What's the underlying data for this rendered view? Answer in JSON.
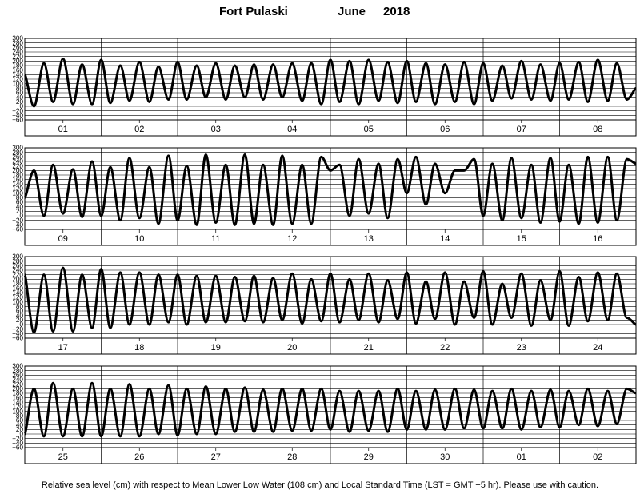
{
  "header": {
    "station": "Fort Pulaski",
    "month": "June",
    "year": "2018"
  },
  "footnote": "Relative sea level (cm) with respect to Mean Lower Low Water (108 cm) and Local Standard Time (LST = GMT −5 hr). Please use with caution.",
  "chart_data": {
    "type": "line",
    "ylim": [
      -60,
      300
    ],
    "yticks": [
      -60,
      -40,
      -20,
      0,
      20,
      40,
      60,
      80,
      100,
      120,
      140,
      160,
      180,
      200,
      220,
      240,
      260,
      280,
      300
    ],
    "grid": true,
    "panels": [
      {
        "days": [
          "01",
          "02",
          "03",
          "04",
          "05",
          "06",
          "07",
          "08"
        ],
        "series": [
          {
            "x": [
              0,
              0.12,
              0.25,
              0.37,
              0.5,
              0.63,
              0.75,
              0.88,
              1,
              1.12,
              1.25,
              1.37,
              1.5,
              1.63,
              1.75,
              1.88,
              2,
              2.12,
              2.25,
              2.37,
              2.5,
              2.63,
              2.75,
              2.88,
              3,
              3.12,
              3.25,
              3.37,
              3.5,
              3.63,
              3.75,
              3.88,
              4,
              4.12,
              4.25,
              4.37,
              4.5,
              4.63,
              4.75,
              4.88,
              5,
              5.12,
              5.25,
              5.37,
              5.5,
              5.63,
              5.75,
              5.88,
              6,
              6.12,
              6.25,
              6.37,
              6.5,
              6.63,
              6.75,
              6.88,
              7,
              7.12,
              7.25,
              7.37,
              7.5,
              7.63,
              7.75,
              7.88,
              8
            ],
            "y": [
              140,
              0,
              190,
              20,
              210,
              10,
              185,
              10,
              205,
              15,
              180,
              25,
              195,
              20,
              175,
              30,
              195,
              30,
              180,
              40,
              190,
              30,
              180,
              40,
              185,
              30,
              185,
              40,
              190,
              25,
              190,
              10,
              205,
              20,
              200,
              10,
              205,
              25,
              195,
              15,
              200,
              20,
              190,
              10,
              185,
              20,
              195,
              10,
              190,
              25,
              180,
              35,
              200,
              30,
              185,
              25,
              190,
              30,
              195,
              20,
              205,
              25,
              190,
              30,
              80
            ]
          }
        ]
      },
      {
        "days": [
          "09",
          "10",
          "11",
          "12",
          "13",
          "14",
          "15",
          "16"
        ],
        "series": [
          {
            "x": [
              0,
              0.12,
              0.25,
              0.37,
              0.5,
              0.63,
              0.75,
              0.88,
              1,
              1.12,
              1.25,
              1.37,
              1.5,
              1.63,
              1.75,
              1.88,
              2,
              2.12,
              2.25,
              2.37,
              2.5,
              2.63,
              2.75,
              2.88,
              3,
              3.12,
              3.25,
              3.37,
              3.5,
              3.63,
              3.75,
              3.88,
              4,
              4.12,
              4.25,
              4.37,
              4.5,
              4.63,
              4.75,
              4.88,
              5,
              5.12,
              5.25,
              5.37,
              5.5,
              5.63,
              5.75,
              5.88,
              6,
              6.12,
              6.25,
              6.37,
              6.5,
              6.63,
              6.75,
              6.88,
              7,
              7.12,
              7.25,
              7.37,
              7.5,
              7.63,
              7.75,
              7.88,
              8
            ],
            "y": [
              80,
              200,
              0,
              225,
              10,
              205,
              -5,
              240,
              0,
              215,
              -20,
              255,
              -10,
              215,
              -35,
              265,
              -20,
              220,
              -40,
              270,
              -30,
              225,
              -40,
              270,
              -35,
              225,
              -40,
              265,
              -35,
              225,
              -35,
              260,
              200,
              225,
              0,
              250,
              10,
              230,
              -10,
              250,
              100,
              260,
              50,
              230,
              100,
              200,
              200,
              250,
              0,
              230,
              -20,
              255,
              -10,
              225,
              -30,
              255,
              -25,
              225,
              -35,
              260,
              -30,
              260,
              -20,
              250,
              230
            ]
          }
        ]
      },
      {
        "days": [
          "17",
          "18",
          "19",
          "20",
          "21",
          "22",
          "23",
          "24"
        ],
        "series": [
          {
            "x": [
              0,
              0.12,
              0.25,
              0.37,
              0.5,
              0.63,
              0.75,
              0.88,
              1,
              1.12,
              1.25,
              1.37,
              1.5,
              1.63,
              1.75,
              1.88,
              2,
              2.12,
              2.25,
              2.37,
              2.5,
              2.63,
              2.75,
              2.88,
              3,
              3.12,
              3.25,
              3.37,
              3.5,
              3.63,
              3.75,
              3.88,
              4,
              4.12,
              4.25,
              4.37,
              4.5,
              4.63,
              4.75,
              4.88,
              5,
              5.12,
              5.25,
              5.37,
              5.5,
              5.63,
              5.75,
              5.88,
              6,
              6.12,
              6.25,
              6.37,
              6.5,
              6.63,
              6.75,
              6.88,
              7,
              7.12,
              7.25,
              7.37,
              7.5,
              7.63,
              7.75,
              7.88,
              8
            ],
            "y": [
              220,
              -35,
              220,
              -30,
              250,
              -30,
              220,
              -15,
              245,
              -15,
              230,
              0,
              230,
              0,
              220,
              10,
              220,
              0,
              215,
              10,
              215,
              10,
              210,
              15,
              215,
              10,
              205,
              20,
              225,
              5,
              200,
              15,
              225,
              10,
              200,
              20,
              225,
              10,
              195,
              25,
              230,
              5,
              190,
              25,
              230,
              0,
              190,
              30,
              235,
              0,
              180,
              30,
              225,
              -5,
              195,
              20,
              235,
              -5,
              210,
              15,
              230,
              20,
              225,
              30,
              0
            ]
          }
        ]
      },
      {
        "days": [
          "25",
          "26",
          "27",
          "28",
          "29",
          "30",
          "01",
          "02"
        ],
        "series": [
          {
            "x": [
              0,
              0.12,
              0.25,
              0.37,
              0.5,
              0.63,
              0.75,
              0.88,
              1,
              1.12,
              1.25,
              1.37,
              1.5,
              1.63,
              1.75,
              1.88,
              2,
              2.12,
              2.25,
              2.37,
              2.5,
              2.63,
              2.75,
              2.88,
              3,
              3.12,
              3.25,
              3.37,
              3.5,
              3.63,
              3.75,
              3.88,
              4,
              4.12,
              4.25,
              4.37,
              4.5,
              4.63,
              4.75,
              4.88,
              5,
              5.12,
              5.25,
              5.37,
              5.5,
              5.63,
              5.75,
              5.88,
              6,
              6.12,
              6.25,
              6.37,
              6.5,
              6.63,
              6.75,
              6.88,
              7,
              7.12,
              7.25,
              7.37,
              7.5,
              7.63,
              7.75,
              7.88,
              8
            ],
            "y": [
              0,
              200,
              -10,
              225,
              -10,
              200,
              -10,
              225,
              -10,
              200,
              -10,
              220,
              -10,
              200,
              0,
              215,
              -5,
              200,
              0,
              210,
              0,
              200,
              10,
              205,
              10,
              195,
              10,
              200,
              15,
              200,
              15,
              200,
              20,
              190,
              10,
              190,
              15,
              190,
              10,
              200,
              20,
              190,
              20,
              195,
              20,
              200,
              25,
              195,
              25,
              190,
              25,
              200,
              20,
              190,
              30,
              195,
              30,
              190,
              40,
              200,
              35,
              190,
              45,
              200,
              180
            ]
          }
        ]
      }
    ]
  }
}
